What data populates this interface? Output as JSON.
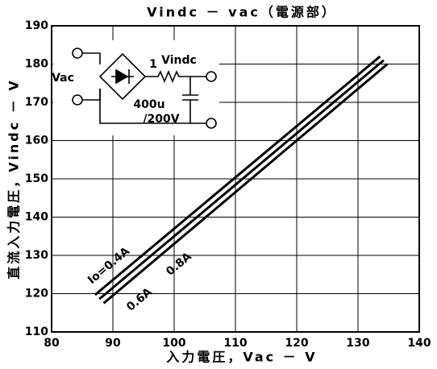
{
  "chart_data": {
    "type": "line",
    "title": "Vindc － vac（電源部）",
    "x_label": "入力電圧，Vac － V",
    "y_label": "直流入力電圧，Vindc － V",
    "xlim": [
      80,
      140
    ],
    "xticks": [
      80,
      90,
      100,
      110,
      120,
      130,
      140
    ],
    "ylim": [
      110,
      190
    ],
    "yticks": [
      110,
      120,
      130,
      140,
      150,
      160,
      170,
      180,
      190
    ],
    "grid": true,
    "series": [
      {
        "name": "Io=0.4A",
        "color": "#000000",
        "x": [
          87.1,
          133.6
        ],
        "values": [
          119.7,
          182
        ]
      },
      {
        "name": "0.6A",
        "color": "#000000",
        "x": [
          87.8,
          134.2
        ],
        "values": [
          118.6,
          181
        ]
      },
      {
        "name": "0.8A",
        "color": "#000000",
        "x": [
          88.5,
          134.8
        ],
        "values": [
          117.5,
          180
        ]
      }
    ],
    "inset": {
      "labels": [
        "Vac",
        "1",
        "Vindc",
        "400u",
        "/200V"
      ]
    }
  }
}
